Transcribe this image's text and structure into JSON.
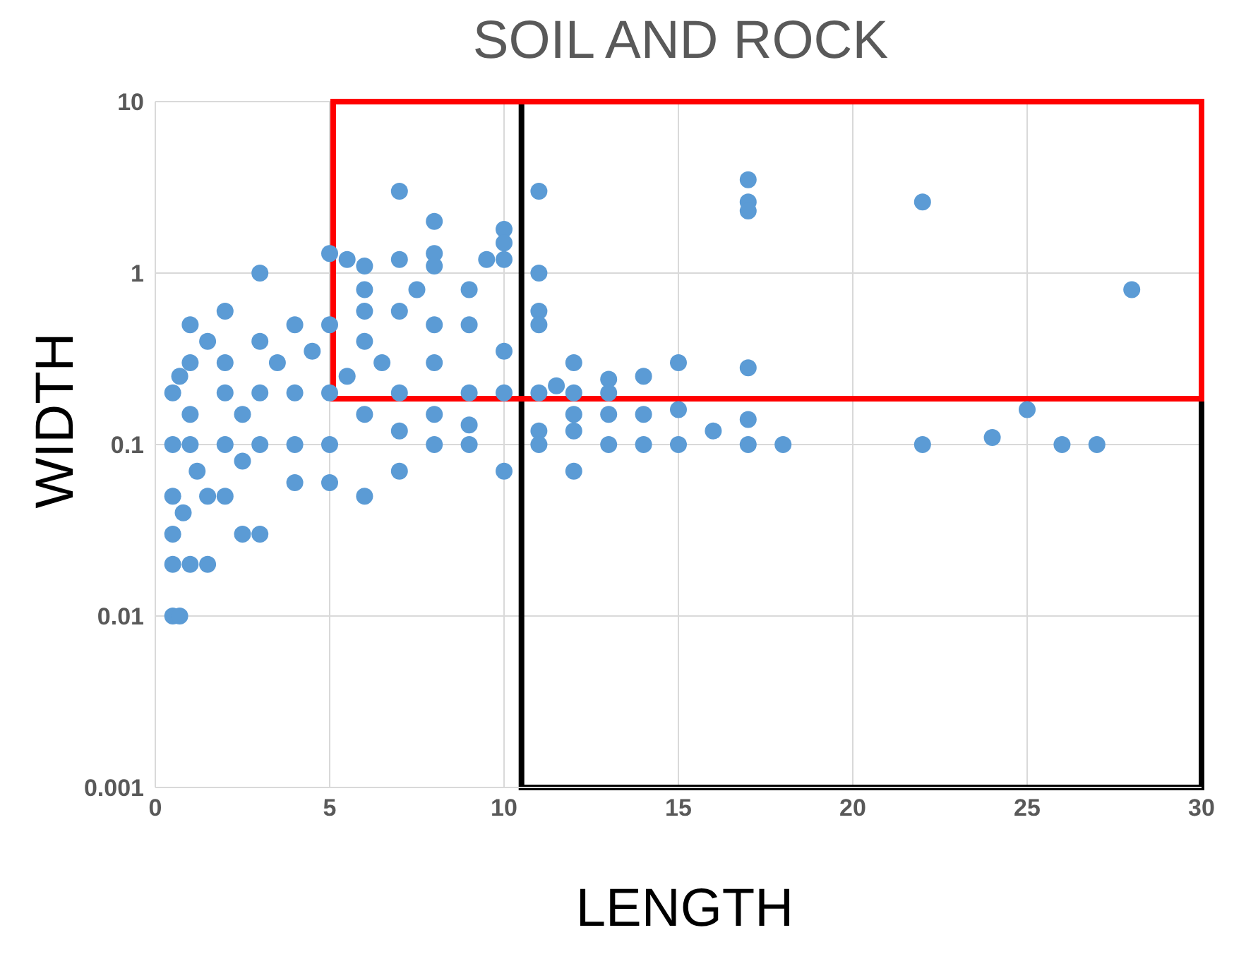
{
  "chart_data": {
    "type": "scatter",
    "title": "SOIL AND ROCK",
    "xlabel": "LENGTH",
    "ylabel": "WIDTH",
    "log": "y",
    "grid": true,
    "marker": "circle",
    "xlim": [
      0,
      30
    ],
    "xticks": [
      0,
      5,
      10,
      15,
      20,
      25,
      30
    ],
    "ylim": [
      0.001,
      10
    ],
    "yticks": [
      0.001,
      0.01,
      0.1,
      1,
      10
    ],
    "series": [
      {
        "color": "#5b9bd5",
        "x": [
          7,
          11,
          17,
          17,
          17,
          22,
          28,
          8,
          10,
          10,
          9.5,
          10,
          11,
          3,
          5,
          5.5,
          6,
          7,
          8,
          8,
          6,
          6,
          7.5,
          7,
          9,
          9,
          11,
          11,
          5,
          4,
          2,
          1,
          8,
          6,
          10,
          12,
          13,
          14,
          15,
          17,
          11.5,
          13,
          12,
          11,
          10,
          12,
          13,
          14,
          15,
          16,
          17,
          11,
          12,
          13,
          14,
          15,
          17,
          18,
          22,
          24,
          25,
          26,
          27,
          12,
          10,
          11,
          9,
          8,
          7,
          6,
          5,
          4,
          3,
          2.5,
          1,
          0.5,
          0.7,
          0.5,
          1.5,
          0.5,
          0.5,
          0.5,
          0.5,
          1,
          1,
          1.5,
          2,
          2,
          2.5,
          3,
          3,
          3.5,
          4,
          4,
          4.5,
          5,
          5,
          5.5,
          6,
          6.5,
          7,
          7,
          8,
          8,
          9,
          9,
          1.5,
          2,
          1.2,
          0.8,
          2,
          3,
          2.5,
          1,
          0.7
        ],
        "values": [
          3,
          3,
          3.5,
          2.6,
          2.3,
          2.6,
          0.8,
          2,
          1.8,
          1.5,
          1.2,
          1.2,
          1,
          1,
          1.3,
          1.2,
          1.1,
          1.2,
          1.3,
          1.1,
          0.8,
          0.6,
          0.8,
          0.6,
          0.8,
          0.5,
          0.6,
          0.5,
          0.5,
          0.5,
          0.6,
          0.5,
          0.5,
          0.4,
          0.35,
          0.3,
          0.24,
          0.25,
          0.3,
          0.28,
          0.22,
          0.2,
          0.2,
          0.2,
          0.2,
          0.15,
          0.15,
          0.15,
          0.16,
          0.12,
          0.14,
          0.12,
          0.12,
          0.1,
          0.1,
          0.1,
          0.1,
          0.1,
          0.1,
          0.11,
          0.16,
          0.1,
          0.1,
          0.07,
          0.07,
          0.1,
          0.1,
          0.1,
          0.07,
          0.05,
          0.06,
          0.06,
          0.03,
          0.03,
          0.02,
          0.01,
          0.01,
          0.02,
          0.02,
          0.03,
          0.05,
          0.1,
          0.2,
          0.3,
          0.1,
          0.05,
          0.2,
          0.1,
          0.15,
          0.4,
          0.1,
          0.3,
          0.2,
          0.1,
          0.35,
          0.2,
          0.1,
          0.25,
          0.15,
          0.3,
          0.2,
          0.12,
          0.3,
          0.15,
          0.2,
          0.13,
          0.4,
          0.3,
          0.07,
          0.04,
          0.05,
          0.2,
          0.08,
          0.15,
          0.25
        ]
      }
    ]
  }
}
